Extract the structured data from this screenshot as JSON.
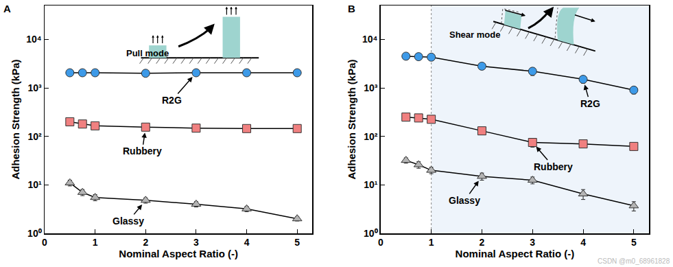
{
  "chart_data": [
    {
      "type": "scatter",
      "panel": "A",
      "inset_label": "Pull mode",
      "x_label": "Nominal Aspect Ratio (-)",
      "y_label": "Adhesion Strength (kPa)",
      "log": "y",
      "line_style": "solid",
      "xlim": [
        0,
        5.3
      ],
      "xticks": [
        0,
        1,
        2,
        3,
        4,
        5
      ],
      "ylim": [
        1,
        50000
      ],
      "yticks": [
        {
          "value": 1,
          "label": "10⁰"
        },
        {
          "value": 10,
          "label": "10¹"
        },
        {
          "value": 100,
          "label": "10²"
        },
        {
          "value": 1000,
          "label": "10³"
        },
        {
          "value": 10000,
          "label": "10⁴"
        }
      ],
      "x": [
        0.5,
        0.75,
        1,
        2,
        3,
        4,
        5
      ],
      "series": [
        {
          "name": "R2G",
          "color": "#3d9ae8",
          "marker": "circle",
          "values": [
            2050,
            2050,
            2050,
            2000,
            2050,
            2050,
            2050
          ],
          "errors": [
            250,
            250,
            250,
            250,
            250,
            250,
            250
          ]
        },
        {
          "name": "Rubbery",
          "color": "#f08080",
          "marker": "square",
          "values": [
            200,
            180,
            165,
            155,
            148,
            145,
            145
          ],
          "errors": [
            25,
            22,
            20,
            20,
            18,
            18,
            18
          ]
        },
        {
          "name": "Glassy",
          "color": "#b4b4b4",
          "marker": "triangle-up",
          "values": [
            11,
            7,
            5.5,
            4.8,
            4,
            3.2,
            2
          ],
          "errors": [
            1.5,
            1,
            0.8,
            0.6,
            0.5,
            0.4,
            0.2
          ]
        }
      ],
      "annotations": [
        {
          "text": "R2G",
          "x": 3,
          "y": 2050
        },
        {
          "text": "Rubbery",
          "x": 2,
          "y": 155
        },
        {
          "text": "Glassy",
          "x": 2,
          "y": 4.8
        }
      ]
    },
    {
      "type": "scatter",
      "panel": "B",
      "inset_label": "Shear mode",
      "x_label": "Nominal Aspect Ratio (-)",
      "y_label": "Adhesion Strength (kPa)",
      "log": "y",
      "line_style": "solid",
      "xlim": [
        0,
        5.3
      ],
      "xticks": [
        0,
        1,
        2,
        3,
        4,
        5
      ],
      "ylim": [
        1,
        50000
      ],
      "yticks": [
        {
          "value": 1,
          "label": "10⁰"
        },
        {
          "value": 10,
          "label": "10¹"
        },
        {
          "value": 100,
          "label": "10²"
        },
        {
          "value": 1000,
          "label": "10³"
        },
        {
          "value": 10000,
          "label": "10⁴"
        }
      ],
      "highlight_xlim": [
        1,
        5.3
      ],
      "x": [
        0.5,
        0.75,
        1,
        2,
        3,
        4,
        5
      ],
      "series": [
        {
          "name": "R2G",
          "color": "#3d9ae8",
          "marker": "circle",
          "values": [
            4500,
            4400,
            4300,
            2800,
            2200,
            1500,
            900
          ],
          "errors": [
            600,
            600,
            600,
            400,
            400,
            250,
            150
          ]
        },
        {
          "name": "Rubbery",
          "color": "#f08080",
          "marker": "square",
          "values": [
            250,
            240,
            225,
            130,
            75,
            70,
            62
          ],
          "errors": [
            35,
            35,
            35,
            18,
            15,
            10,
            10
          ]
        },
        {
          "name": "Glassy",
          "color": "#b4b4b4",
          "marker": "triangle-up",
          "values": [
            32,
            26,
            20,
            15,
            12.5,
            6.5,
            3.7
          ],
          "errors": [
            4,
            4,
            3,
            2.5,
            2,
            1.5,
            0.8
          ]
        }
      ],
      "annotations": [
        {
          "text": "R2G",
          "x": 4,
          "y": 1500
        },
        {
          "text": "Rubbery",
          "x": 3,
          "y": 75
        },
        {
          "text": "Glassy",
          "x": 2,
          "y": 15
        }
      ]
    }
  ],
  "watermark": "CSDN @m0_68961828"
}
